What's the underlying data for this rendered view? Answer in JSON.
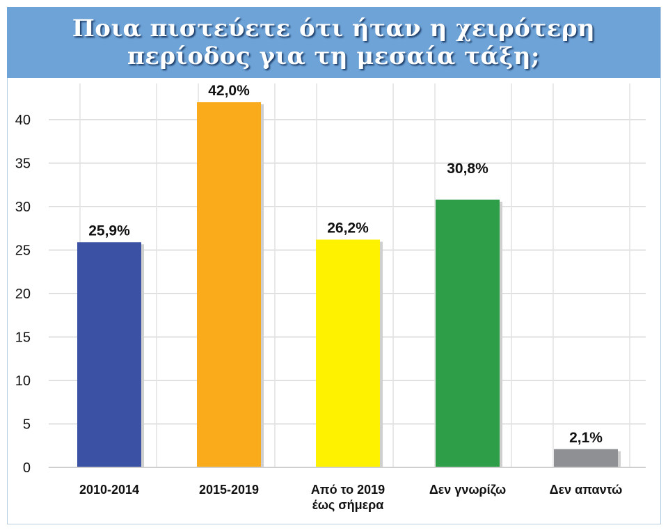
{
  "chart_data": {
    "type": "bar",
    "title_lines": [
      "Ποια πιστεύετε ότι ήταν η χειρότερη",
      "περίοδος για τη μεσαία τάξη;"
    ],
    "categories": [
      [
        "2010-2014"
      ],
      [
        "2015-2019"
      ],
      [
        "Από το 2019",
        "έως σήμερα"
      ],
      [
        "Δεν γνωρίζω"
      ],
      [
        "Δεν απαντώ"
      ]
    ],
    "values": [
      25.9,
      42.0,
      26.2,
      30.8,
      2.1
    ],
    "value_labels": [
      "25,9%",
      "42,0%",
      "26,2%",
      "30,8%",
      "2,1%"
    ],
    "colors": [
      "#3b52a4",
      "#f9ab1c",
      "#fff200",
      "#2f9e48",
      "#8e9094"
    ],
    "yticks": [
      "0",
      "5",
      "10",
      "15",
      "20",
      "25",
      "30",
      "35",
      "40"
    ],
    "ylim": [
      0,
      45
    ],
    "grid": true,
    "legend": "none"
  }
}
